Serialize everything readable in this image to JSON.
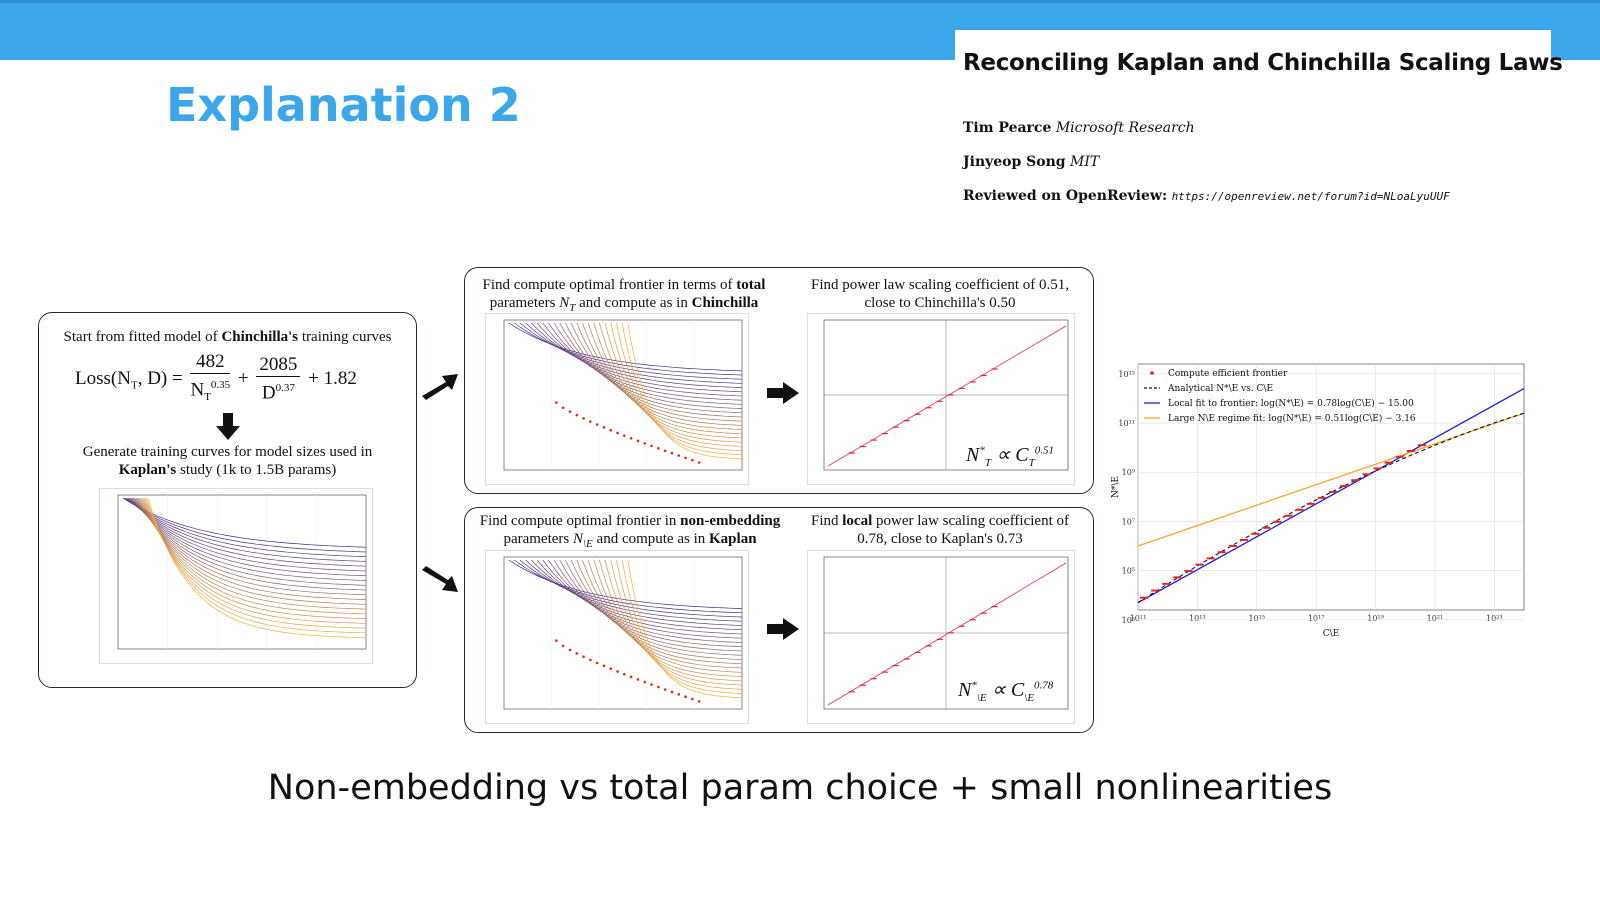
{
  "slide": {
    "title": "Explanation 2",
    "caption": "Non-embedding vs total param choice + small nonlinearities"
  },
  "paper": {
    "title": "Reconciling Kaplan and Chinchilla Scaling Laws",
    "author1_name": "Tim Pearce",
    "author1_affil": "Microsoft Research",
    "author2_name": "Jinyeop Song",
    "author2_affil": "MIT",
    "review_label": "Reviewed on OpenReview:",
    "review_url": "https://openreview.net/forum?id=NLoaLyuUUF"
  },
  "left_box": {
    "intro_prefix": "Start from fitted model of ",
    "intro_bold": "Chinchilla's",
    "intro_suffix": " training curves",
    "eq_lhs": "Loss(N",
    "eq_lhs_sub": "T",
    "eq_lhs_end": ", D) =",
    "eq_num1": "482",
    "eq_den1": "N",
    "eq_den1_sub": "T",
    "eq_den1_sup": "0.35",
    "eq_plus1": "+",
    "eq_num2": "2085",
    "eq_den2": "D",
    "eq_den2_sup": "0.37",
    "eq_tail": "+ 1.82",
    "gen_line1": "Generate training curves for model sizes used in",
    "gen_bold": "Kaplan's",
    "gen_line2_suffix": " study (1k to 1.5B params)"
  },
  "top_box": {
    "left_text_prefix": "Find compute optimal frontier in terms of ",
    "left_text_bold": "total",
    "left_text_line2_prefix": "parameters ",
    "left_text_var": "N",
    "left_text_var_sub": "T",
    "left_text_line2_mid": " and compute as in ",
    "left_text_line2_bold": "Chinchilla",
    "right_text_line1": "Find power law scaling coefficient of 0.51,",
    "right_text_line2": "close to Chinchilla's 0.50",
    "prop_formula": "N*T ∝ C_T^0.51"
  },
  "bottom_box": {
    "left_text_prefix": "Find compute optimal frontier in ",
    "left_text_bold": "non-embedding",
    "left_text_line2_prefix": "parameters ",
    "left_text_var": "N",
    "left_text_var_sub": "\\E",
    "left_text_line2_mid": " and compute as in ",
    "left_text_line2_bold": "Kaplan",
    "right_text_prefix": "Find ",
    "right_text_bold": "local",
    "right_text_suffix": " power law scaling coefficient of",
    "right_text_line2": "0.78, close to Kaplan's 0.73",
    "prop_formula": "N*\\E ∝ C\\E^0.78"
  },
  "big_chart": {
    "legend": [
      {
        "label": "Compute efficient frontier",
        "color": "#e3261c",
        "style": "dot"
      },
      {
        "label": "Analytical N*\\E vs. C\\E",
        "color": "#111111",
        "style": "dash"
      },
      {
        "label": "Local fit to frontier: log(N*\\E) = 0.78log(C\\E) − 15.00",
        "color": "#1a1ae6",
        "style": "line"
      },
      {
        "label": "Large N\\E regime fit: log(N*\\E) = 0.51log(C\\E) − 3.16",
        "color": "#f5a623",
        "style": "line"
      }
    ],
    "xlabel": "C\\E",
    "ylabel": "N*\\E",
    "xticks": [
      "10¹¹",
      "10¹³",
      "10¹⁵",
      "10¹⁷",
      "10¹⁹",
      "10²¹",
      "10²³"
    ],
    "yticks": [
      "10⁵",
      "10⁵",
      "10⁷",
      "10⁹",
      "10¹¹",
      "10¹³"
    ]
  },
  "colors": {
    "accent": "#3ba7ea",
    "frame": "#1f2a44",
    "frontier": "#e3261c",
    "fit_blue": "#1a1ae6",
    "fit_orange": "#f5a623"
  }
}
